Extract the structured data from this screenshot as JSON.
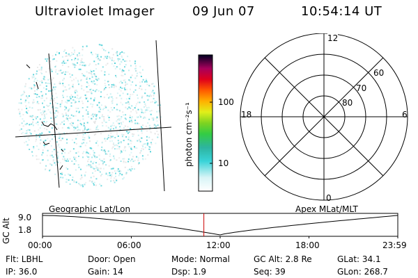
{
  "header": {
    "title": "Ultraviolet Imager",
    "date": "09 Jun 07",
    "time": "10:54:14 UT"
  },
  "colorbar": {
    "unit_label": "photon cm⁻²s⁻¹",
    "ticks": [
      "100",
      "10"
    ]
  },
  "polar_plot": {
    "mlt_labels": {
      "top": "12",
      "right": "6",
      "bottom": "0",
      "left": "18"
    },
    "mlat_labels": [
      "60",
      "70",
      "80"
    ]
  },
  "timeline": {
    "left_title": "Geographic Lat/Lon",
    "right_title": "Apex  MLat/MLT",
    "y_axis_title": "GC Alt",
    "y_ticks": [
      "9.0",
      "1.8"
    ],
    "x_ticks": [
      "00:00",
      "06:00",
      "12:00",
      "18:00",
      "23:59"
    ],
    "marker_time_hours": 10.9
  },
  "footer": {
    "flt": "Flt: LBHL",
    "ip": "IP: 36.0",
    "door": "Door: Open",
    "gain": "Gain: 14",
    "mode": "Mode: Normal",
    "dsp": "Dsp:    1.9",
    "gc_alt": "GC Alt: 2.8 Re",
    "seq": "Seq: 39",
    "glat": "GLat:  34.1",
    "glon": "GLon: 268.7"
  },
  "colors": {
    "marker": "#cc0000",
    "speckle": "#4fd0d8"
  }
}
